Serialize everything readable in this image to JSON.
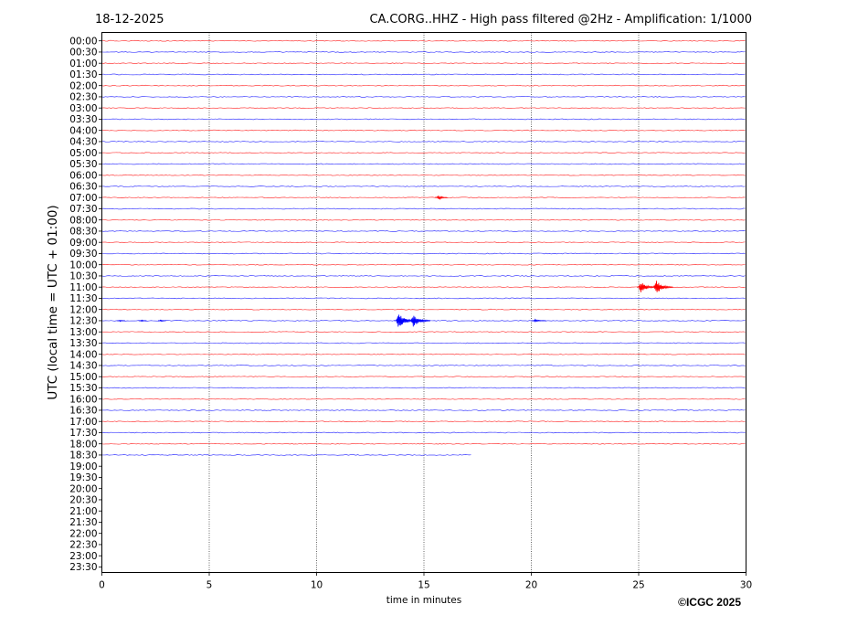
{
  "header": {
    "date": "18-12-2025",
    "title": "CA.CORG..HHZ - High pass filtered @2Hz - Amplification: 1/1000"
  },
  "footer": {
    "copyright": "©ICGC 2025"
  },
  "chart_data": {
    "type": "line",
    "title": "CA.CORG..HHZ - High pass filtered @2Hz - Amplification: 1/1000",
    "date": "18-12-2025",
    "xlabel": "time in minutes",
    "ylabel": "UTC (local time = UTC + 01:00)",
    "xlim": [
      0,
      30
    ],
    "x_ticks": [
      0,
      5,
      10,
      15,
      20,
      25,
      30
    ],
    "x_gridlines": [
      5,
      10,
      15,
      20,
      25
    ],
    "grid": "vertical dotted",
    "y_ticks": [
      "00:00",
      "00:30",
      "01:00",
      "01:30",
      "02:00",
      "02:30",
      "03:00",
      "03:30",
      "04:00",
      "04:30",
      "05:00",
      "05:30",
      "06:00",
      "06:30",
      "07:00",
      "07:30",
      "08:00",
      "08:30",
      "09:00",
      "09:30",
      "10:00",
      "10:30",
      "11:00",
      "11:30",
      "12:00",
      "12:30",
      "13:00",
      "13:30",
      "14:00",
      "14:30",
      "15:00",
      "15:30",
      "16:00",
      "16:30",
      "17:00",
      "17:30",
      "18:00",
      "18:30",
      "19:00",
      "19:30",
      "20:00",
      "20:30",
      "21:00",
      "21:30",
      "22:00",
      "22:30",
      "23:00",
      "23:30"
    ],
    "trace_colors": [
      "#ff0000",
      "#0000ff"
    ],
    "last_trace": {
      "row": "18:30",
      "end_minute": 17.2
    },
    "events": [
      {
        "row": "07:00",
        "minute": 15.6,
        "amplitude": 0.3,
        "width_min": 0.5,
        "color": "#ff0000"
      },
      {
        "row": "11:00",
        "minute": 25.0,
        "amplitude": 0.7,
        "width_min": 0.8,
        "color": "#ff0000"
      },
      {
        "row": "11:00",
        "minute": 25.7,
        "amplitude": 0.9,
        "width_min": 0.9,
        "color": "#ff0000"
      },
      {
        "row": "12:30",
        "minute": 13.7,
        "amplitude": 0.95,
        "width_min": 0.9,
        "color": "#0000ff"
      },
      {
        "row": "12:30",
        "minute": 14.4,
        "amplitude": 0.8,
        "width_min": 0.9,
        "color": "#0000ff"
      },
      {
        "row": "12:30",
        "minute": 20.1,
        "amplitude": 0.15,
        "width_min": 0.6,
        "color": "#0000ff"
      },
      {
        "row": "12:30",
        "minute": 0.8,
        "amplitude": 0.1,
        "width_min": 0.3,
        "color": "#0000ff"
      },
      {
        "row": "12:30",
        "minute": 1.8,
        "amplitude": 0.1,
        "width_min": 0.3,
        "color": "#0000ff"
      },
      {
        "row": "12:30",
        "minute": 2.7,
        "amplitude": 0.1,
        "width_min": 0.3,
        "color": "#0000ff"
      }
    ]
  }
}
